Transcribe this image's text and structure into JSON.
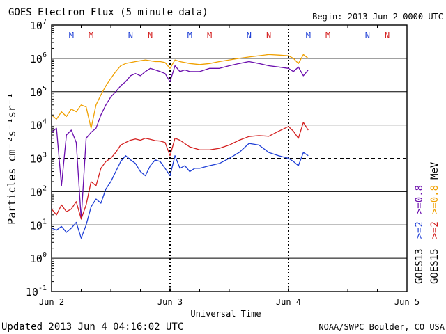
{
  "chart_data": {
    "type": "line",
    "title": "GOES Electron Flux (5 minute data)",
    "begin_label": "Begin: 2013 Jun 2 0000 UTC",
    "xlabel": "Universal Time",
    "ylabel": "Particles cm⁻²s⁻¹sr⁻¹",
    "updated_label": "Updated 2013 Jun  4 04:16:02 UTC",
    "credit_label": "NOAA/SWPC Boulder, CO USA",
    "y_scale": "log",
    "ylim": [
      0.1,
      10000000
    ],
    "y_ticks": [
      {
        "base": "10",
        "exp": "-1",
        "value": 0.1
      },
      {
        "base": "10",
        "exp": "0",
        "value": 1
      },
      {
        "base": "10",
        "exp": "1",
        "value": 10
      },
      {
        "base": "10",
        "exp": "2",
        "value": 100
      },
      {
        "base": "10",
        "exp": "3",
        "value": 1000
      },
      {
        "base": "10",
        "exp": "4",
        "value": 10000
      },
      {
        "base": "10",
        "exp": "5",
        "value": 100000
      },
      {
        "base": "10",
        "exp": "6",
        "value": 1000000
      },
      {
        "base": "10",
        "exp": "7",
        "value": 10000000
      }
    ],
    "xlim": [
      "2013-06-02",
      "2013-06-05"
    ],
    "x_ticks": [
      {
        "label": "Jun 2",
        "value": "2013-06-02"
      },
      {
        "label": "Jun 3",
        "value": "2013-06-03"
      },
      {
        "label": "Jun 4",
        "value": "2013-06-04"
      },
      {
        "label": "Jun 5",
        "value": "2013-06-05"
      }
    ],
    "grid": "horizontal lines at each decade",
    "threshold_line": {
      "value": 1000,
      "style": "dashed"
    },
    "mn_markers": [
      {
        "label": "M",
        "time": "2013-06-02 04:00",
        "color": "#1f3fd6"
      },
      {
        "label": "M",
        "time": "2013-06-02 08:00",
        "color": "#d42020"
      },
      {
        "label": "N",
        "time": "2013-06-02 16:00",
        "color": "#1f3fd6"
      },
      {
        "label": "N",
        "time": "2013-06-02 20:00",
        "color": "#d42020"
      },
      {
        "label": "M",
        "time": "2013-06-03 04:00",
        "color": "#1f3fd6"
      },
      {
        "label": "M",
        "time": "2013-06-03 08:00",
        "color": "#d42020"
      },
      {
        "label": "N",
        "time": "2013-06-03 16:00",
        "color": "#1f3fd6"
      },
      {
        "label": "N",
        "time": "2013-06-03 20:00",
        "color": "#d42020"
      },
      {
        "label": "M",
        "time": "2013-06-04 04:00",
        "color": "#1f3fd6"
      },
      {
        "label": "M",
        "time": "2013-06-04 08:00",
        "color": "#d42020"
      },
      {
        "label": "N",
        "time": "2013-06-04 16:00",
        "color": "#1f3fd6"
      },
      {
        "label": "N",
        "time": "2013-06-04 20:00",
        "color": "#d42020"
      }
    ],
    "legend": {
      "placement": "right, vertical",
      "columns": [
        {
          "title": "GOES13",
          "entries": [
            {
              "label": ">=2",
              "color": "#1f3fd6"
            },
            {
              "label": ">=0.8",
              "color": "#6a0dad"
            }
          ]
        },
        {
          "title": "GOES15",
          "entries": [
            {
              "label": ">=2",
              "color": "#d42020"
            },
            {
              "label": ">=0.8",
              "color": "#f0a000"
            }
          ]
        }
      ],
      "unit": "MeV"
    },
    "series": [
      {
        "color": "#1f3fd6",
        "x": [
          "2013-06-02 00:00",
          "2013-06-02 01:00",
          "2013-06-02 02:00",
          "2013-06-02 03:00",
          "2013-06-02 04:00",
          "2013-06-02 05:00",
          "2013-06-02 06:00",
          "2013-06-02 07:00",
          "2013-06-02 08:00",
          "2013-06-02 09:00",
          "2013-06-02 10:00",
          "2013-06-02 11:00",
          "2013-06-02 12:00",
          "2013-06-02 13:00",
          "2013-06-02 14:00",
          "2013-06-02 15:00",
          "2013-06-02 16:00",
          "2013-06-02 17:00",
          "2013-06-02 18:00",
          "2013-06-02 19:00",
          "2013-06-02 20:00",
          "2013-06-02 21:00",
          "2013-06-02 22:00",
          "2013-06-02 23:00",
          "2013-06-03 00:00",
          "2013-06-03 01:00",
          "2013-06-03 02:00",
          "2013-06-03 03:00",
          "2013-06-03 04:00",
          "2013-06-03 05:00",
          "2013-06-03 06:00",
          "2013-06-03 08:00",
          "2013-06-03 10:00",
          "2013-06-03 12:00",
          "2013-06-03 14:00",
          "2013-06-03 16:00",
          "2013-06-03 18:00",
          "2013-06-03 20:00",
          "2013-06-03 22:00",
          "2013-06-04 00:00",
          "2013-06-04 01:00",
          "2013-06-04 02:00",
          "2013-06-04 03:00",
          "2013-06-04 04:00"
        ],
        "y": [
          8,
          7,
          9,
          6,
          8,
          12,
          4,
          10,
          35,
          60,
          45,
          120,
          200,
          400,
          800,
          1200,
          900,
          700,
          400,
          300,
          600,
          900,
          800,
          500,
          300,
          1200,
          500,
          600,
          400,
          500,
          500,
          600,
          700,
          1000,
          1500,
          2800,
          2500,
          1500,
          1200,
          1000,
          800,
          600,
          1500,
          1200
        ]
      },
      {
        "color": "#6a0dad",
        "x": [
          "2013-06-02 00:00",
          "2013-06-02 01:00",
          "2013-06-02 02:00",
          "2013-06-02 03:00",
          "2013-06-02 04:00",
          "2013-06-02 05:00",
          "2013-06-02 06:00",
          "2013-06-02 07:00",
          "2013-06-02 08:00",
          "2013-06-02 09:00",
          "2013-06-02 10:00",
          "2013-06-02 11:00",
          "2013-06-02 12:00",
          "2013-06-02 13:00",
          "2013-06-02 14:00",
          "2013-06-02 15:00",
          "2013-06-02 16:00",
          "2013-06-02 17:00",
          "2013-06-02 18:00",
          "2013-06-02 19:00",
          "2013-06-02 20:00",
          "2013-06-02 21:00",
          "2013-06-02 22:00",
          "2013-06-02 23:00",
          "2013-06-03 00:00",
          "2013-06-03 01:00",
          "2013-06-03 02:00",
          "2013-06-03 03:00",
          "2013-06-03 04:00",
          "2013-06-03 06:00",
          "2013-06-03 08:00",
          "2013-06-03 10:00",
          "2013-06-03 12:00",
          "2013-06-03 14:00",
          "2013-06-03 16:00",
          "2013-06-03 18:00",
          "2013-06-03 20:00",
          "2013-06-03 22:00",
          "2013-06-04 00:00",
          "2013-06-04 01:00",
          "2013-06-04 02:00",
          "2013-06-04 03:00",
          "2013-06-04 04:00"
        ],
        "y": [
          6000,
          8000,
          150,
          5000,
          7000,
          3000,
          15,
          4000,
          6000,
          8000,
          20000,
          40000,
          70000,
          100000,
          150000,
          200000,
          300000,
          350000,
          300000,
          400000,
          500000,
          450000,
          400000,
          350000,
          200000,
          600000,
          400000,
          450000,
          400000,
          400000,
          500000,
          500000,
          600000,
          700000,
          800000,
          700000,
          600000,
          550000,
          500000,
          400000,
          550000,
          300000,
          450000
        ]
      },
      {
        "color": "#d42020",
        "x": [
          "2013-06-02 00:00",
          "2013-06-02 01:00",
          "2013-06-02 02:00",
          "2013-06-02 03:00",
          "2013-06-02 04:00",
          "2013-06-02 05:00",
          "2013-06-02 06:00",
          "2013-06-02 07:00",
          "2013-06-02 08:00",
          "2013-06-02 09:00",
          "2013-06-02 10:00",
          "2013-06-02 11:00",
          "2013-06-02 12:00",
          "2013-06-02 13:00",
          "2013-06-02 14:00",
          "2013-06-02 15:00",
          "2013-06-02 16:00",
          "2013-06-02 17:00",
          "2013-06-02 18:00",
          "2013-06-02 19:00",
          "2013-06-02 20:00",
          "2013-06-02 21:00",
          "2013-06-02 22:00",
          "2013-06-02 23:00",
          "2013-06-03 00:00",
          "2013-06-03 01:00",
          "2013-06-03 02:00",
          "2013-06-03 04:00",
          "2013-06-03 06:00",
          "2013-06-03 08:00",
          "2013-06-03 10:00",
          "2013-06-03 12:00",
          "2013-06-03 14:00",
          "2013-06-03 16:00",
          "2013-06-03 18:00",
          "2013-06-03 20:00",
          "2013-06-03 22:00",
          "2013-06-04 00:00",
          "2013-06-04 01:00",
          "2013-06-04 02:00",
          "2013-06-04 03:00",
          "2013-06-04 04:00"
        ],
        "y": [
          30,
          20,
          40,
          25,
          30,
          50,
          15,
          40,
          200,
          150,
          500,
          800,
          1000,
          1500,
          2500,
          3000,
          3500,
          3800,
          3500,
          4000,
          3700,
          3400,
          3300,
          3000,
          1200,
          4000,
          3500,
          2200,
          1800,
          1800,
          2000,
          2500,
          3500,
          4500,
          4800,
          4600,
          6500,
          9000,
          6500,
          4000,
          12000,
          7000
        ]
      },
      {
        "color": "#f0a000",
        "x": [
          "2013-06-02 00:00",
          "2013-06-02 01:00",
          "2013-06-02 02:00",
          "2013-06-02 03:00",
          "2013-06-02 04:00",
          "2013-06-02 05:00",
          "2013-06-02 06:00",
          "2013-06-02 07:00",
          "2013-06-02 08:00",
          "2013-06-02 09:00",
          "2013-06-02 10:00",
          "2013-06-02 11:00",
          "2013-06-02 12:00",
          "2013-06-02 13:00",
          "2013-06-02 14:00",
          "2013-06-02 15:00",
          "2013-06-02 16:00",
          "2013-06-02 17:00",
          "2013-06-02 18:00",
          "2013-06-02 19:00",
          "2013-06-02 20:00",
          "2013-06-02 21:00",
          "2013-06-02 22:00",
          "2013-06-02 23:00",
          "2013-06-03 00:00",
          "2013-06-03 01:00",
          "2013-06-03 02:00",
          "2013-06-03 04:00",
          "2013-06-03 06:00",
          "2013-06-03 08:00",
          "2013-06-03 10:00",
          "2013-06-03 12:00",
          "2013-06-03 14:00",
          "2013-06-03 16:00",
          "2013-06-03 18:00",
          "2013-06-03 20:00",
          "2013-06-03 22:00",
          "2013-06-04 00:00",
          "2013-06-04 01:00",
          "2013-06-04 02:00",
          "2013-06-04 03:00",
          "2013-06-04 04:00"
        ],
        "y": [
          20000,
          15000,
          25000,
          18000,
          30000,
          25000,
          40000,
          35000,
          8000,
          40000,
          80000,
          150000,
          250000,
          400000,
          600000,
          700000,
          750000,
          800000,
          850000,
          900000,
          850000,
          800000,
          800000,
          750000,
          500000,
          900000,
          800000,
          700000,
          650000,
          700000,
          800000,
          900000,
          1000000,
          1100000,
          1200000,
          1300000,
          1250000,
          1200000,
          1000000,
          700000,
          1300000,
          1000000
        ]
      }
    ]
  }
}
